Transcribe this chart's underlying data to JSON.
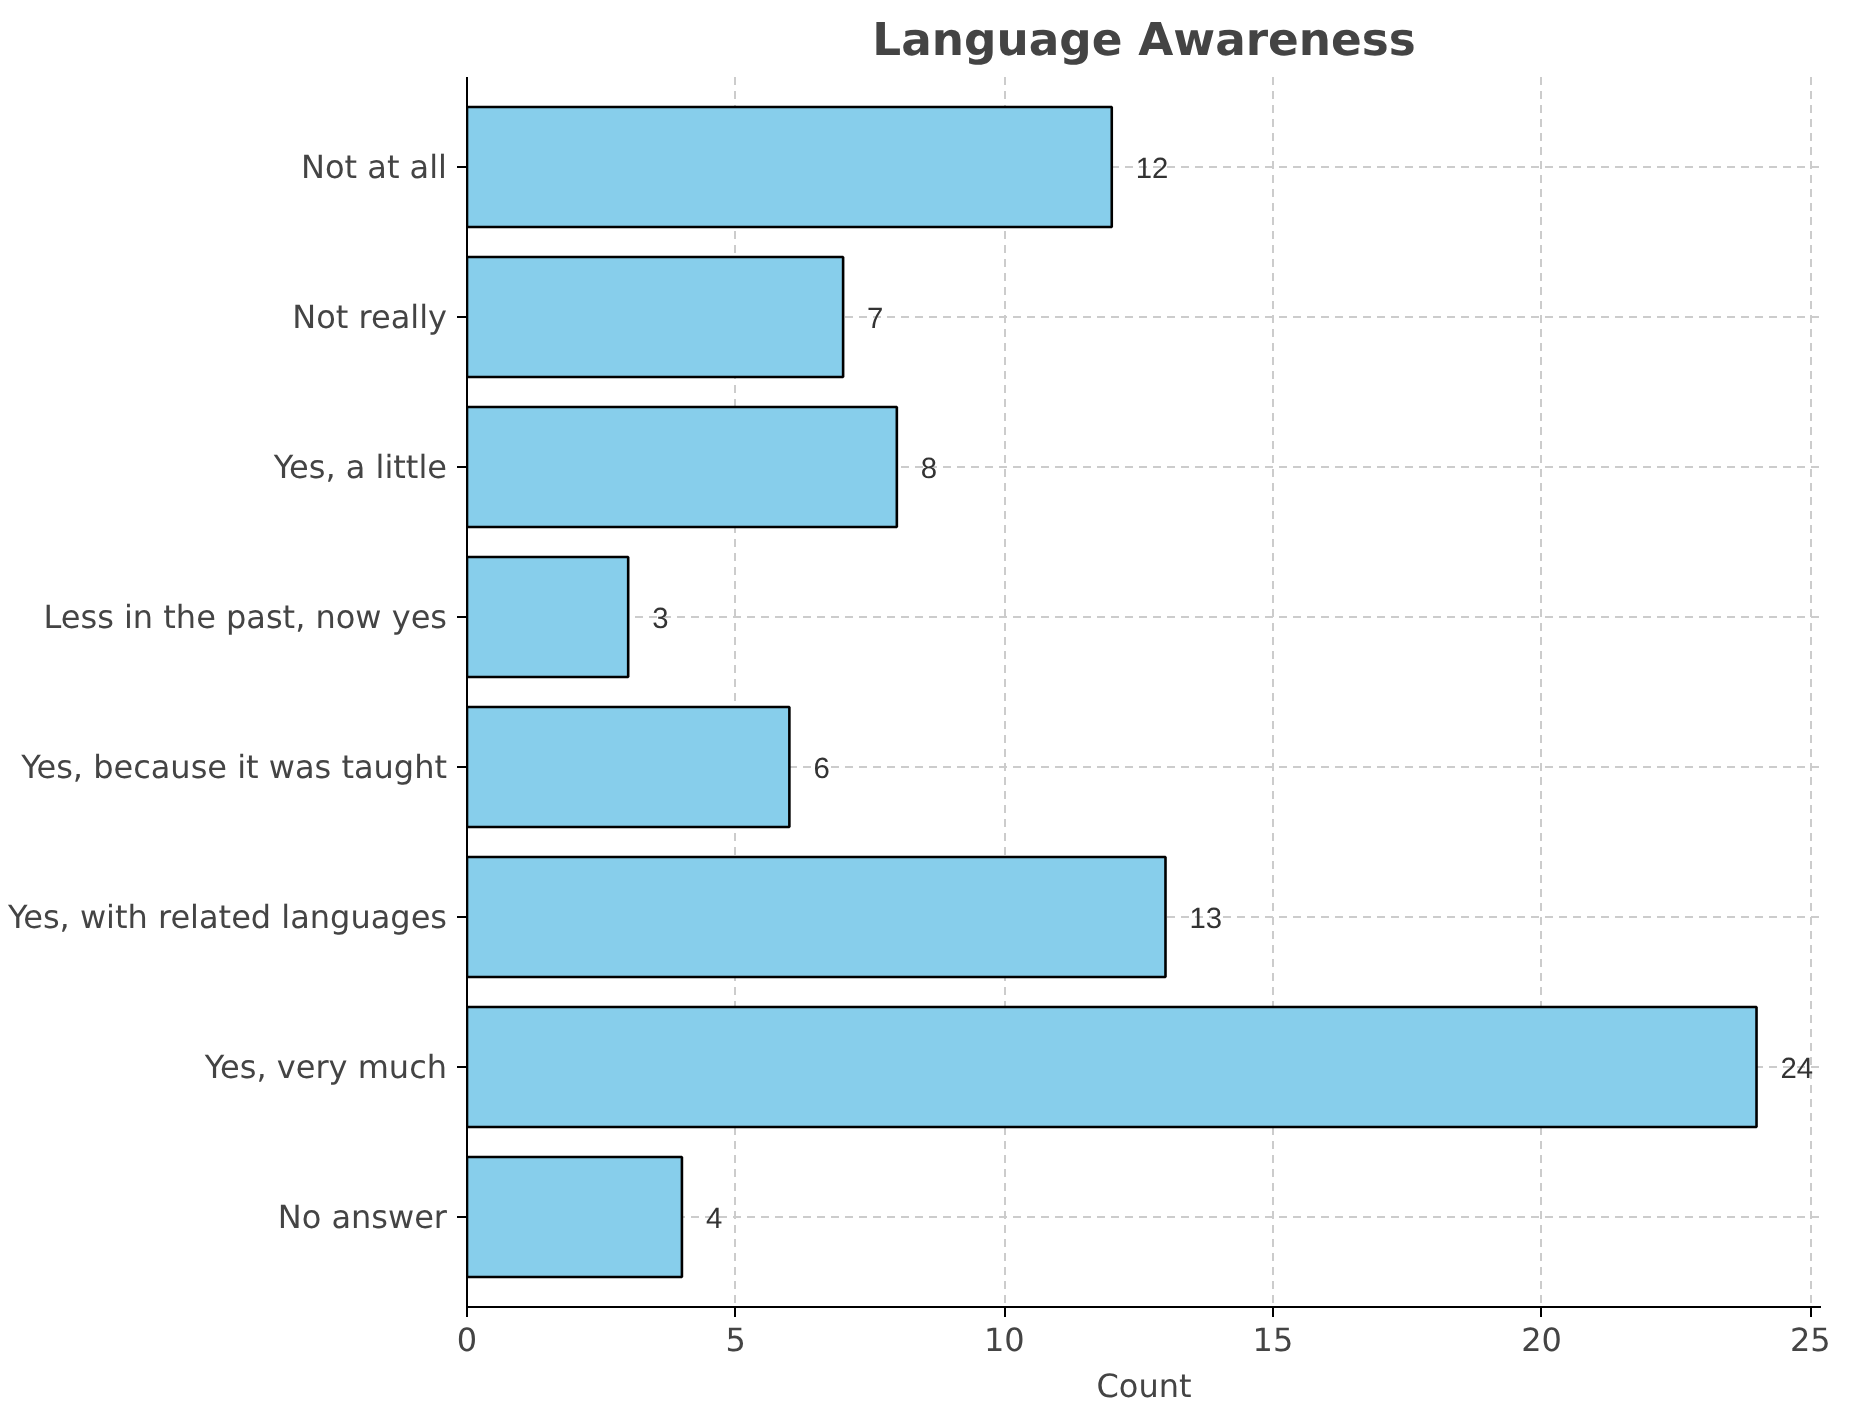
{
  "chart_data": {
    "type": "bar",
    "orientation": "horizontal",
    "title": "Language Awareness",
    "xlabel": "Count",
    "categories": [
      "Not at all",
      "Not really",
      "Yes, a little",
      "Less in the past, now yes",
      "Yes, because it was taught",
      "Yes, with related languages",
      "Yes, very much",
      "No answer"
    ],
    "values": [
      12,
      7,
      8,
      3,
      6,
      13,
      24,
      4
    ],
    "color": "#87ceeb",
    "xlim": [
      0,
      25.2
    ],
    "xticks": [
      0,
      5,
      10,
      15,
      20,
      25
    ],
    "grid": true,
    "data_labels": true
  }
}
